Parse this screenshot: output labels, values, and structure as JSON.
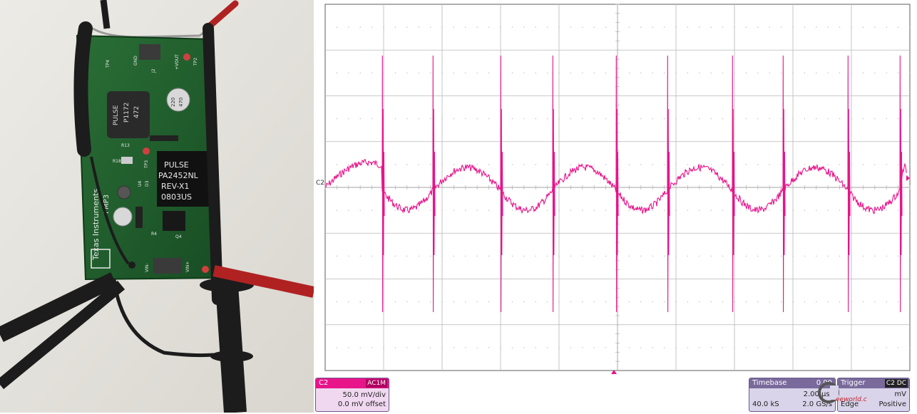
{
  "photo": {
    "board_silkscreen": [
      "Texas Instruments",
      "PMP3"
    ],
    "inductor_text": [
      "PULSE",
      "P1172",
      "472"
    ],
    "transformer_text": [
      "PULSE",
      "PA2452NL",
      "REV-X1",
      "0803US"
    ],
    "capacitor_text": [
      "220",
      "470"
    ],
    "test_point_labels": [
      "TP4",
      "GND",
      "J2",
      "+VOUT",
      "TP2",
      "R13",
      "TP3",
      "R18",
      "U4",
      "D3",
      "R4",
      "Q4",
      "VIN-",
      "VIN+"
    ],
    "colors": {
      "board": "#1f5e2c",
      "wall": "#e6e4df",
      "probe": "#1c1c1c",
      "red_lead": "#b02222"
    }
  },
  "scope": {
    "trace_color": "#e7148a",
    "grid_color": "#b8b8b8",
    "channel_marker": "C2",
    "channel_panel": {
      "name": "C2",
      "coupling": "AC1M",
      "vdiv": "50.0 mV/div",
      "offset": "0.0 mV offset"
    },
    "timebase_panel": {
      "title": "Timebase",
      "delay": "0.00",
      "tdiv": "2.00 µs/",
      "samples": "40.0 kS",
      "rate": "2.0 GS/s"
    },
    "trigger_panel": {
      "title": "Trigger",
      "mode": "C2 DC",
      "level": "mV",
      "type": "Edge",
      "slope": "Positive"
    },
    "watermark": "eeworld.com.cn"
  }
}
